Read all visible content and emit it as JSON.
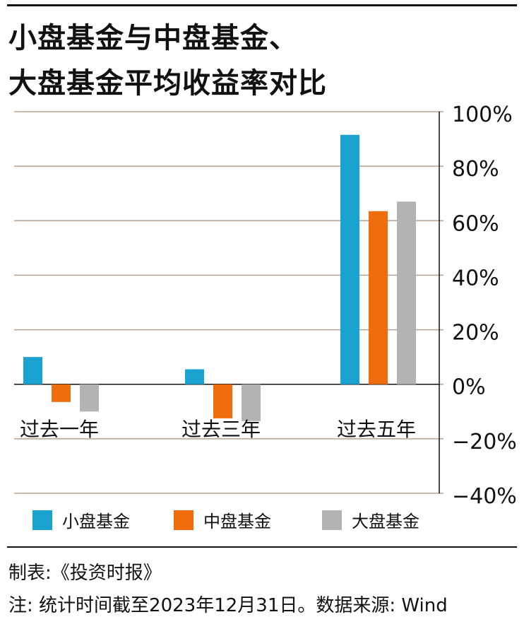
{
  "title_line1": "小盘基金与中盘基金、",
  "title_line2": "大盘基金平均收益率对比",
  "footer": {
    "producer": "制表:《投资时报》",
    "note": "注: 统计时间截至2023年12月31日。数据来源: Wind"
  },
  "colors": {
    "grid": "#b8a08c",
    "axis": "#111111"
  },
  "chart_data": {
    "type": "bar",
    "categories": [
      "过去一年",
      "过去三年",
      "过去五年"
    ],
    "series": [
      {
        "name": "小盘基金",
        "color": "#1aa3d0",
        "values": [
          10,
          5.5,
          91.5
        ]
      },
      {
        "name": "中盘基金",
        "color": "#ef6d0c",
        "values": [
          -6.5,
          -12.5,
          63.5
        ]
      },
      {
        "name": "大盘基金",
        "color": "#b3b3b3",
        "values": [
          -10,
          -13.5,
          67
        ]
      }
    ],
    "ylim": [
      -40,
      100
    ],
    "yticks": [
      100,
      80,
      60,
      40,
      20,
      0,
      -20,
      -40
    ],
    "ytick_labels": [
      "100%",
      "80%",
      "60%",
      "40%",
      "20%",
      "0%",
      "−20%",
      "−40%"
    ],
    "grid": true,
    "y_axis_side": "right",
    "legend_placement": "bottom"
  }
}
